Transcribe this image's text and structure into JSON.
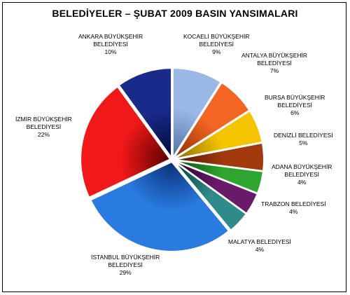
{
  "chart_data": {
    "type": "pie",
    "title": "BELEDİYELER – ŞUBAT 2009 BASIN YANSIMALARI",
    "slices": [
      {
        "label": "KOCAELİ BÜYÜKŞEHİR BELEDİYESİ",
        "value": 9,
        "value_label": "9%",
        "color": "#9bb7e6",
        "dark": "#4f6f9e"
      },
      {
        "label": "ANTALYA BÜYÜKŞEHİR BELEDİYESİ",
        "value": 7,
        "value_label": "7%",
        "color": "#f26522",
        "dark": "#8a2e00"
      },
      {
        "label": "BURSA BÜYÜKŞEHİR BELEDİYESİ",
        "value": 6,
        "value_label": "6%",
        "color": "#f5c400",
        "dark": "#8a6a00"
      },
      {
        "label": "DENİZLİ BELEDİYESİ",
        "value": 5,
        "value_label": "5%",
        "color": "#a33a0e",
        "dark": "#4a1500"
      },
      {
        "label": "ADANA BÜYÜKŞEHİR BELEDİYESİ",
        "value": 4,
        "value_label": "4%",
        "color": "#2ea52e",
        "dark": "#0b4a0b"
      },
      {
        "label": "TRABZON BELEDİYESİ",
        "value": 4,
        "value_label": "4%",
        "color": "#6a1a6a",
        "dark": "#2a002a"
      },
      {
        "label": "MALATYA BELEDİYESİ",
        "value": 4,
        "value_label": "4%",
        "color": "#2f8a8a",
        "dark": "#0b3a3a"
      },
      {
        "label": "İSTANBUL BÜYÜKŞEHİR BELEDİYESİ",
        "value": 29,
        "value_label": "29%",
        "color": "#2a7be0",
        "dark": "#0a2f78"
      },
      {
        "label": "İZMİR BÜYÜKŞEHİR BELEDİYESİ",
        "value": 22,
        "value_label": "22%",
        "color": "#f01818",
        "dark": "#5a0000"
      },
      {
        "label": "ANKARA BÜYÜKŞEHİR BELEDİYESİ",
        "value": 10,
        "value_label": "10%",
        "color": "#1a2a8a",
        "dark": "#000a3a"
      }
    ]
  },
  "labels": [
    {
      "line1": "KOCAELİ BÜYÜKŞEHİR",
      "line2": "BELEDİYESİ",
      "pct": "9%"
    },
    {
      "line1": "ANTALYA BÜYÜKŞEHİR",
      "line2": "BELEDİYESİ",
      "pct": "7%"
    },
    {
      "line1": "BURSA BÜYÜKŞEHİR",
      "line2": "BELEDİYESİ",
      "pct": "6%"
    },
    {
      "line1": "DENİZLİ BELEDİYESİ",
      "line2": "",
      "pct": "5%"
    },
    {
      "line1": "ADANA BÜYÜKŞEHİR",
      "line2": "BELEDİYESİ",
      "pct": "4%"
    },
    {
      "line1": "TRABZON BELEDİYESİ",
      "line2": "",
      "pct": "4%"
    },
    {
      "line1": "MALATYA BELEDİYESİ",
      "line2": "",
      "pct": "4%"
    },
    {
      "line1": "İSTANBUL BÜYÜKŞEHİR",
      "line2": "BELEDİYESİ",
      "pct": "29%"
    },
    {
      "line1": "İZMİR BÜYÜKŞEHİR",
      "line2": "BELEDİYESİ",
      "pct": "22%"
    },
    {
      "line1": "ANKARA BÜYÜKŞEHİR",
      "line2": "BELEDİYESİ",
      "pct": "10%"
    }
  ]
}
